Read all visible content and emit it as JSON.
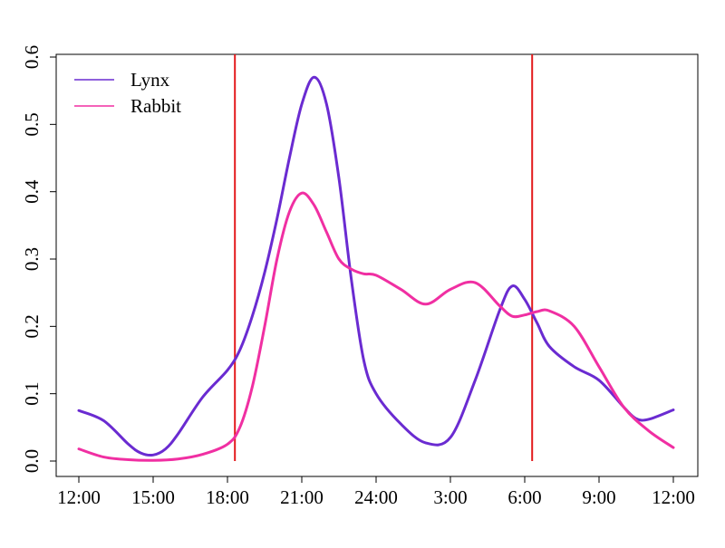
{
  "chart_data": {
    "type": "line",
    "title": "",
    "xlabel": "",
    "ylabel": "",
    "xlim": [
      0,
      24
    ],
    "ylim": [
      0,
      0.6
    ],
    "grid": false,
    "legend_position": "top-left",
    "x_ticks": [
      {
        "value": 0,
        "label": "12:00"
      },
      {
        "value": 3,
        "label": "15:00"
      },
      {
        "value": 6,
        "label": "18:00"
      },
      {
        "value": 9,
        "label": "21:00"
      },
      {
        "value": 12,
        "label": "24:00"
      },
      {
        "value": 15,
        "label": "3:00"
      },
      {
        "value": 18,
        "label": "6:00"
      },
      {
        "value": 21,
        "label": "9:00"
      },
      {
        "value": 24,
        "label": "12:00"
      }
    ],
    "y_ticks": [
      {
        "value": 0.0,
        "label": "0.0"
      },
      {
        "value": 0.1,
        "label": "0.1"
      },
      {
        "value": 0.2,
        "label": "0.2"
      },
      {
        "value": 0.3,
        "label": "0.3"
      },
      {
        "value": 0.4,
        "label": "0.4"
      },
      {
        "value": 0.5,
        "label": "0.5"
      },
      {
        "value": 0.6,
        "label": "0.6"
      }
    ],
    "vertical_lines": [
      {
        "x": 6.3,
        "color": "#e31a1c"
      },
      {
        "x": 18.3,
        "color": "#e31a1c"
      }
    ],
    "series": [
      {
        "name": "Lynx",
        "color": "#6a2bd1",
        "x": [
          0,
          1,
          2,
          2.5,
          3,
          3.5,
          4,
          5,
          6,
          6.5,
          7,
          7.5,
          8,
          8.5,
          9,
          9.5,
          10,
          10.5,
          11,
          11.5,
          12,
          13,
          14,
          15,
          16,
          17,
          17.5,
          18,
          18.5,
          19,
          20,
          21,
          22,
          22.5,
          23,
          24
        ],
        "y": [
          0.075,
          0.06,
          0.025,
          0.012,
          0.009,
          0.018,
          0.04,
          0.095,
          0.135,
          0.165,
          0.215,
          0.28,
          0.36,
          0.45,
          0.53,
          0.57,
          0.53,
          0.42,
          0.27,
          0.15,
          0.1,
          0.055,
          0.027,
          0.035,
          0.12,
          0.225,
          0.26,
          0.24,
          0.205,
          0.17,
          0.14,
          0.12,
          0.08,
          0.063,
          0.062,
          0.076
        ]
      },
      {
        "name": "Rabbit",
        "color": "#f02fa2",
        "x": [
          0,
          1,
          2,
          3,
          4,
          5,
          6,
          6.5,
          7,
          7.5,
          8,
          8.5,
          9,
          9.5,
          10,
          10.5,
          11,
          11.5,
          12,
          13,
          14,
          15,
          16,
          17,
          17.5,
          18,
          18.5,
          19,
          20,
          21,
          22,
          23,
          24
        ],
        "y": [
          0.018,
          0.006,
          0.002,
          0.001,
          0.003,
          0.01,
          0.025,
          0.05,
          0.11,
          0.2,
          0.3,
          0.37,
          0.398,
          0.38,
          0.34,
          0.3,
          0.285,
          0.278,
          0.276,
          0.255,
          0.233,
          0.255,
          0.265,
          0.23,
          0.215,
          0.217,
          0.222,
          0.223,
          0.2,
          0.14,
          0.08,
          0.045,
          0.02
        ]
      }
    ]
  }
}
